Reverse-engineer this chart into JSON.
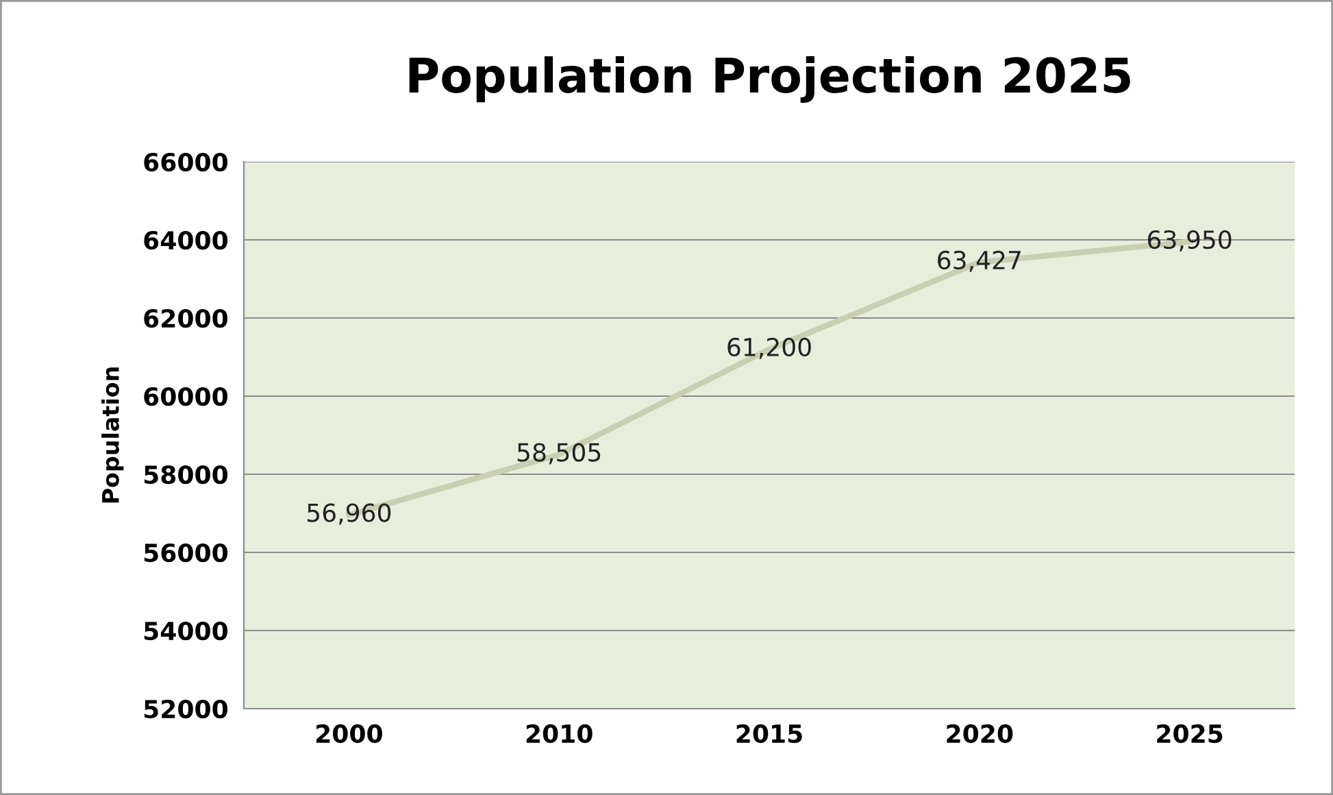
{
  "chart_data": {
    "type": "line",
    "title": "Population Projection 2025",
    "ylabel": "Population",
    "categories": [
      "2000",
      "2010",
      "2015",
      "2020",
      "2025"
    ],
    "series": [
      {
        "color": "#c9cfb3",
        "values": [
          56960,
          58505,
          61200,
          63427,
          63950
        ],
        "value_labels": [
          "56,960",
          "58,505",
          "61,200",
          "63,427",
          "63,950"
        ]
      }
    ],
    "ylim": [
      52000,
      66000
    ],
    "yticks": [
      52000,
      54000,
      56000,
      58000,
      60000,
      62000,
      64000,
      66000
    ],
    "grid": "y",
    "legend": false,
    "marker": "none",
    "line_style": "solid"
  }
}
